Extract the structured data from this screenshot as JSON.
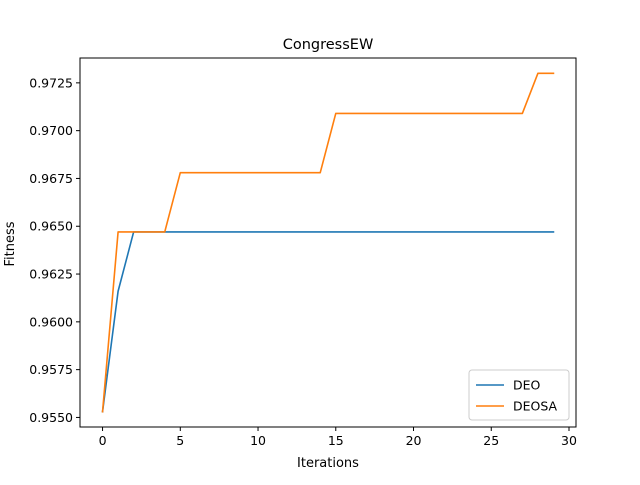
{
  "chart_data": {
    "type": "line",
    "title": "CongressEW",
    "xlabel": "Iterations",
    "ylabel": "Fitness",
    "xlim": [
      -1.45,
      30.45
    ],
    "ylim": [
      0.9545,
      0.9738
    ],
    "xticks": [
      0,
      5,
      10,
      15,
      20,
      25,
      30
    ],
    "xtick_labels": [
      "0",
      "5",
      "10",
      "15",
      "20",
      "25",
      "30"
    ],
    "yticks": [
      0.955,
      0.9575,
      0.96,
      0.9625,
      0.965,
      0.9675,
      0.97,
      0.9725
    ],
    "ytick_labels": [
      "0.9550",
      "0.9575",
      "0.9600",
      "0.9625",
      "0.9650",
      "0.9675",
      "0.9700",
      "0.9725"
    ],
    "grid": false,
    "legend_position": "lower right",
    "x": [
      0,
      1,
      2,
      3,
      4,
      5,
      6,
      7,
      8,
      9,
      10,
      11,
      12,
      13,
      14,
      15,
      16,
      17,
      18,
      19,
      20,
      21,
      22,
      23,
      24,
      25,
      26,
      27,
      28,
      29
    ],
    "series": [
      {
        "name": "DEO",
        "color": "#1f77b4",
        "values": [
          0.9553,
          0.9616,
          0.9647,
          0.9647,
          0.9647,
          0.9647,
          0.9647,
          0.9647,
          0.9647,
          0.9647,
          0.9647,
          0.9647,
          0.9647,
          0.9647,
          0.9647,
          0.9647,
          0.9647,
          0.9647,
          0.9647,
          0.9647,
          0.9647,
          0.9647,
          0.9647,
          0.9647,
          0.9647,
          0.9647,
          0.9647,
          0.9647,
          0.9647,
          0.9647
        ]
      },
      {
        "name": "DEOSA",
        "color": "#ff7f0e",
        "values": [
          0.9553,
          0.9647,
          0.9647,
          0.9647,
          0.9647,
          0.9678,
          0.9678,
          0.9678,
          0.9678,
          0.9678,
          0.9678,
          0.9678,
          0.9678,
          0.9678,
          0.9678,
          0.9709,
          0.9709,
          0.9709,
          0.9709,
          0.9709,
          0.9709,
          0.9709,
          0.9709,
          0.9709,
          0.9709,
          0.9709,
          0.9709,
          0.9709,
          0.973,
          0.973
        ]
      }
    ]
  }
}
